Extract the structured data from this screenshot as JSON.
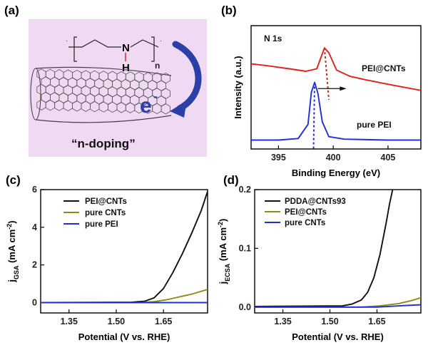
{
  "panel_labels": [
    "(a)",
    "(b)",
    "(c)",
    "(d)"
  ],
  "schematic": {
    "caption": "“n-doping”",
    "electron": "e",
    "electron_sup": "-",
    "n_atom": "N",
    "h_atom": "H",
    "subscript_n": "n",
    "colors": {
      "background": "#f0d9f2",
      "arrow": "#2b3fa6",
      "nh": "#d11a1a"
    }
  },
  "chart_data": [
    {
      "id": "b",
      "type": "line",
      "title": "N 1s",
      "xlabel": "Binding Energy (eV)",
      "ylabel": "Intensity (a.u.)",
      "xlim": [
        392.5,
        408
      ],
      "ylim": [
        0,
        10
      ],
      "xticks": [
        395,
        400,
        405
      ],
      "xtick_labels": [
        "395",
        "400",
        "405"
      ],
      "series": [
        {
          "name": "PEI@CNTs",
          "color": "#e0201c",
          "points": [
            [
              392.5,
              6.9
            ],
            [
              394,
              6.75
            ],
            [
              396,
              6.5
            ],
            [
              397.5,
              6.3
            ],
            [
              398.5,
              6.5
            ],
            [
              399.2,
              8.2
            ],
            [
              399.6,
              7.8
            ],
            [
              400.3,
              6.4
            ],
            [
              401.5,
              5.9
            ],
            [
              403,
              5.6
            ],
            [
              405,
              5.25
            ],
            [
              408,
              4.75
            ]
          ]
        },
        {
          "name": "pure PEI",
          "color": "#1f2fd1",
          "points": [
            [
              392.5,
              0.72
            ],
            [
              395,
              0.72
            ],
            [
              396.8,
              0.85
            ],
            [
              397.7,
              2.0
            ],
            [
              398.0,
              4.6
            ],
            [
              398.3,
              5.4
            ],
            [
              398.6,
              4.5
            ],
            [
              399.0,
              2.2
            ],
            [
              399.6,
              1.0
            ],
            [
              401,
              0.8
            ],
            [
              405,
              0.72
            ],
            [
              408,
              0.72
            ]
          ]
        }
      ],
      "annotations": [
        "PEI@CNTs",
        "pure PEI"
      ]
    },
    {
      "id": "c",
      "type": "line",
      "xlabel": "Potential (V vs. RHE)",
      "ylabel": "j",
      "ylabel_sub": "GSA",
      "ylabel_unit": " (mA cm",
      "ylabel_unit_sup": "-2",
      "ylabel_close": ")",
      "xlim": [
        1.26,
        1.79
      ],
      "ylim": [
        -0.55,
        6
      ],
      "xticks": [
        1.35,
        1.5,
        1.65
      ],
      "xtick_labels": [
        "1.35",
        "1.50",
        "1.65"
      ],
      "yticks": [
        0,
        2,
        4,
        6
      ],
      "ytick_labels": [
        "0",
        "2",
        "4",
        "6"
      ],
      "series": [
        {
          "name": "PEI@CNTs",
          "color": "#111111",
          "points": [
            [
              1.26,
              0.0
            ],
            [
              1.55,
              0.02
            ],
            [
              1.59,
              0.07
            ],
            [
              1.62,
              0.25
            ],
            [
              1.65,
              0.75
            ],
            [
              1.68,
              1.6
            ],
            [
              1.71,
              2.6
            ],
            [
              1.74,
              3.7
            ],
            [
              1.77,
              4.9
            ],
            [
              1.79,
              5.9
            ]
          ]
        },
        {
          "name": "pure CNTs",
          "color": "#8c8c12",
          "points": [
            [
              1.26,
              0.0
            ],
            [
              1.58,
              0.0
            ],
            [
              1.62,
              0.05
            ],
            [
              1.66,
              0.15
            ],
            [
              1.7,
              0.3
            ],
            [
              1.74,
              0.45
            ],
            [
              1.77,
              0.6
            ],
            [
              1.79,
              0.7
            ]
          ]
        },
        {
          "name": "pure PEI",
          "color": "#1f2fd1",
          "points": [
            [
              1.26,
              0.0
            ],
            [
              1.79,
              0.0
            ]
          ]
        }
      ]
    },
    {
      "id": "d",
      "type": "line",
      "xlabel": "Potential (V vs. RHE)",
      "ylabel": "j",
      "ylabel_sub": "ECSA",
      "ylabel_unit": " (mA cm",
      "ylabel_unit_sup": "-2",
      "ylabel_close": ")",
      "xlim": [
        1.26,
        1.79
      ],
      "ylim": [
        -0.01,
        0.2
      ],
      "xticks": [
        1.35,
        1.5,
        1.65
      ],
      "xtick_labels": [
        "1.35",
        "1.50",
        "1.65"
      ],
      "yticks": [
        0.0,
        0.1,
        0.2
      ],
      "ytick_labels": [
        "0.0",
        "0.1",
        "0.2"
      ],
      "series": [
        {
          "name": "PDDA@CNTs93",
          "color": "#111111",
          "points": [
            [
              1.26,
              0.001
            ],
            [
              1.54,
              0.002
            ],
            [
              1.57,
              0.005
            ],
            [
              1.6,
              0.012
            ],
            [
              1.62,
              0.025
            ],
            [
              1.64,
              0.05
            ],
            [
              1.66,
              0.09
            ],
            [
              1.68,
              0.145
            ],
            [
              1.69,
              0.175
            ],
            [
              1.7,
              0.2
            ]
          ]
        },
        {
          "name": "PEI@CNTs",
          "color": "#8c8c12",
          "points": [
            [
              1.26,
              0.0
            ],
            [
              1.6,
              0.0
            ],
            [
              1.66,
              0.002
            ],
            [
              1.72,
              0.006
            ],
            [
              1.76,
              0.011
            ],
            [
              1.79,
              0.016
            ]
          ]
        },
        {
          "name": "pure CNTs",
          "color": "#1f2fd1",
          "points": [
            [
              1.26,
              0.0
            ],
            [
              1.65,
              0.0
            ],
            [
              1.72,
              0.002
            ],
            [
              1.79,
              0.004
            ]
          ]
        }
      ]
    }
  ]
}
